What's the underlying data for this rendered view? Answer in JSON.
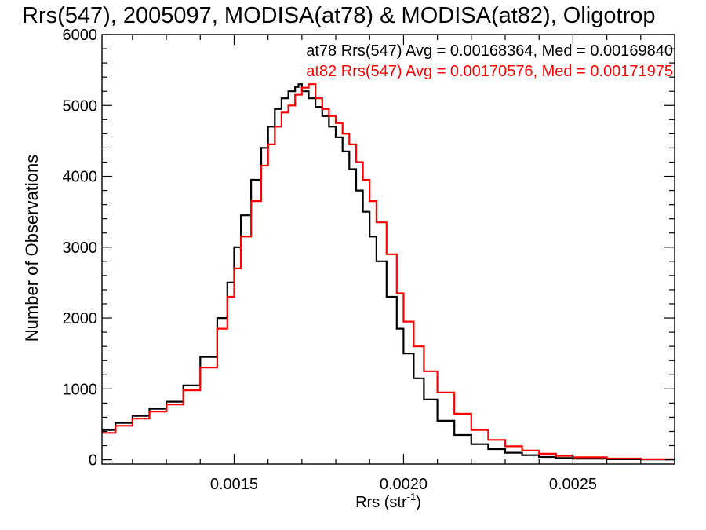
{
  "chart_data": {
    "type": "line",
    "title": "Rrs(547), 2005097, MODISA(at78) & MODISA(at82), Oligotrop",
    "xlabel": "Rrs (str",
    "xlabel_sup": "-1",
    "xlabel_close": ")",
    "ylabel": "Number of Observations",
    "xlim": [
      0.00111,
      0.0028
    ],
    "ylim": [
      -60,
      6000
    ],
    "xticks": [
      0.0015,
      0.002,
      0.0025
    ],
    "xtick_labels": [
      "0.0015",
      "0.0020",
      "0.0025"
    ],
    "yticks": [
      0,
      1000,
      2000,
      3000,
      4000,
      5000,
      6000
    ],
    "ytick_labels": [
      "0",
      "1000",
      "2000",
      "3000",
      "4000",
      "5000",
      "6000"
    ],
    "grid": false,
    "legend_position": "top-right",
    "series": [
      {
        "name": "at78",
        "stats_label": "at78 Rrs(547) Avg = 0.00168364, Med = 0.00169840",
        "color": "#000000",
        "x": [
          0.00111,
          0.00115,
          0.0012,
          0.00125,
          0.0013,
          0.00135,
          0.0014,
          0.00145,
          0.00148,
          0.0015,
          0.00152,
          0.00155,
          0.00158,
          0.0016,
          0.00162,
          0.00164,
          0.00166,
          0.00168,
          0.00169,
          0.0017,
          0.00172,
          0.00174,
          0.00176,
          0.00178,
          0.0018,
          0.00182,
          0.00184,
          0.00186,
          0.00188,
          0.0019,
          0.00192,
          0.00195,
          0.00198,
          0.002,
          0.00203,
          0.00206,
          0.0021,
          0.00215,
          0.0022,
          0.00225,
          0.0023,
          0.00235,
          0.0024,
          0.00245,
          0.0025,
          0.0026,
          0.0027,
          0.0028
        ],
        "y": [
          420,
          520,
          620,
          720,
          820,
          1050,
          1450,
          2000,
          2500,
          3000,
          3450,
          3950,
          4400,
          4700,
          4950,
          5100,
          5200,
          5260,
          5300,
          5200,
          5100,
          4980,
          4850,
          4700,
          4550,
          4350,
          4100,
          3800,
          3500,
          3150,
          2800,
          2300,
          1850,
          1500,
          1150,
          850,
          550,
          350,
          220,
          150,
          100,
          65,
          40,
          25,
          15,
          8,
          4,
          2
        ]
      },
      {
        "name": "at82",
        "stats_label": "at82 Rrs(547) Avg = 0.00170576, Med = 0.00171975",
        "color": "#ff0000",
        "x": [
          0.00111,
          0.00115,
          0.0012,
          0.00125,
          0.0013,
          0.00135,
          0.0014,
          0.00145,
          0.00148,
          0.0015,
          0.00152,
          0.00155,
          0.00158,
          0.0016,
          0.00162,
          0.00164,
          0.00166,
          0.00168,
          0.0017,
          0.00172,
          0.00174,
          0.00176,
          0.00178,
          0.0018,
          0.00182,
          0.00184,
          0.00186,
          0.00188,
          0.0019,
          0.00192,
          0.00195,
          0.00198,
          0.002,
          0.00203,
          0.00206,
          0.0021,
          0.00215,
          0.0022,
          0.00225,
          0.0023,
          0.00235,
          0.0024,
          0.00245,
          0.0025,
          0.0026,
          0.0027,
          0.0028
        ],
        "y": [
          380,
          480,
          580,
          680,
          780,
          980,
          1300,
          1850,
          2300,
          2700,
          3150,
          3650,
          4150,
          4450,
          4700,
          4900,
          5000,
          5150,
          5250,
          5300,
          5100,
          4950,
          4850,
          4750,
          4600,
          4450,
          4200,
          3950,
          3650,
          3350,
          2900,
          2350,
          1950,
          1600,
          1250,
          950,
          650,
          420,
          280,
          190,
          130,
          85,
          55,
          35,
          18,
          9,
          4
        ]
      }
    ]
  }
}
